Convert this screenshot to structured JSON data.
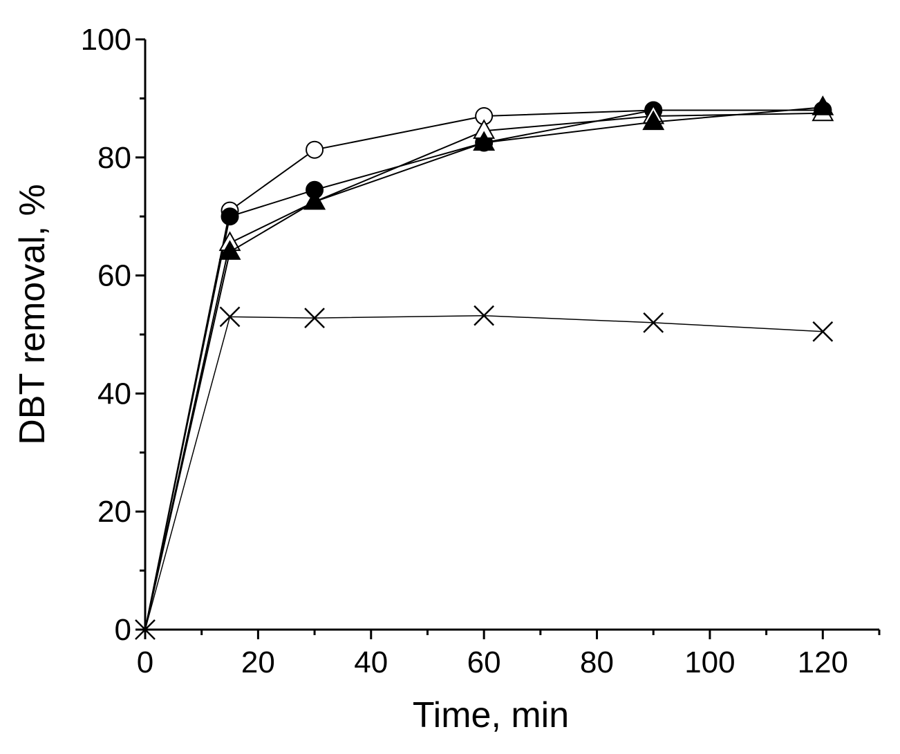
{
  "chart_data": {
    "type": "line",
    "title": "",
    "xlabel": "Time, min",
    "ylabel": "DBT removal, %",
    "xlim": [
      0,
      130
    ],
    "ylim": [
      0,
      100
    ],
    "xticks": [
      "0",
      "20",
      "40",
      "60",
      "80",
      "100",
      "120"
    ],
    "yticks": [
      "0",
      "20",
      "40",
      "60",
      "80",
      "100"
    ],
    "x": [
      0,
      15,
      30,
      60,
      90,
      120
    ],
    "series": [
      {
        "name": "open circle",
        "marker": "circle-open",
        "values": [
          0,
          71,
          81.3,
          87,
          88,
          88
        ]
      },
      {
        "name": "filled circle",
        "marker": "circle-filled",
        "values": [
          0,
          70,
          74.5,
          82.5,
          88,
          88
        ]
      },
      {
        "name": "open triangle",
        "marker": "triangle-open",
        "values": [
          0,
          65.5,
          72.5,
          84.5,
          87,
          87.5
        ]
      },
      {
        "name": "filled triangle",
        "marker": "triangle-filled",
        "values": [
          0,
          64,
          72.5,
          82.5,
          86,
          88.5
        ]
      },
      {
        "name": "cross",
        "marker": "cross",
        "values": [
          0,
          53,
          52.8,
          53.2,
          52,
          50.5
        ]
      }
    ]
  }
}
